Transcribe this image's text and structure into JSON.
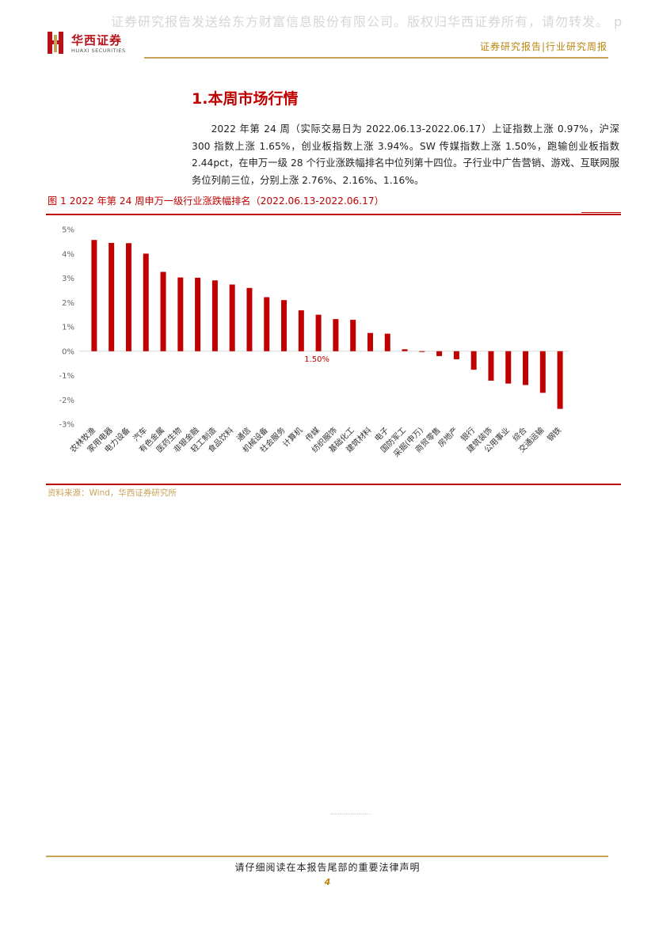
{
  "watermark": "证券研究报告发送给东方财富信息股份有限公司。版权归华西证券所有，请勿转发。 p",
  "header": {
    "logo_cn": "华西证券",
    "logo_en": "HUAXI SECURITIES",
    "label": "证券研究报告|行业研究周报"
  },
  "section": {
    "title": "1.本周市场行情",
    "paragraph": "2022 年第 24 周（实际交易日为 2022.06.13-2022.06.17）上证指数上涨 0.97%，沪深 300 指数上涨 1.65%，创业板指数上涨 3.94%。SW 传媒指数上涨 1.50%，跑输创业板指数 2.44pct，在申万一级 28 个行业涨跌幅排名中位列第十四位。子行业中广告营销、游戏、互联网服务位列前三位，分别上涨 2.76%、2.16%、1.16%。"
  },
  "figure": {
    "title": "图 1 2022 年第 24 周申万一级行业涨跌幅排名（2022.06.13-2022.06.17）",
    "source": "资料来源：Wind，华西证券研究所"
  },
  "chart_data": {
    "type": "bar",
    "categories": [
      "农林牧渔",
      "家用电器",
      "电力设备",
      "汽车",
      "有色金属",
      "医药生物",
      "非银金融",
      "轻工制造",
      "食品饮料",
      "通信",
      "机械设备",
      "社会服务",
      "计算机",
      "传媒",
      "纺织服饰",
      "基础化工",
      "建筑材料",
      "电子",
      "国防军工",
      "采掘(申万)",
      "商贸零售",
      "房地产",
      "银行",
      "建筑装饰",
      "公用事业",
      "综合",
      "交通运输",
      "钢铁"
    ],
    "values": [
      4.57,
      4.45,
      4.44,
      4.01,
      3.26,
      3.03,
      3.02,
      2.91,
      2.74,
      2.6,
      2.22,
      2.1,
      1.68,
      1.5,
      1.32,
      1.29,
      0.75,
      0.72,
      0.08,
      -0.01,
      -0.2,
      -0.33,
      -0.76,
      -1.21,
      -1.33,
      -1.39,
      -1.71,
      -2.37
    ],
    "ylim": [
      -3,
      5
    ],
    "yticks": [
      "5%",
      "4%",
      "3%",
      "2%",
      "1%",
      "0%",
      "-1%",
      "-2%",
      "-3%"
    ],
    "annotation": "1.50%",
    "bar_color": "#c00000",
    "grid": false
  },
  "footer": {
    "note": "请仔细阅读在本报告尾部的重要法律声明",
    "page": "4"
  }
}
